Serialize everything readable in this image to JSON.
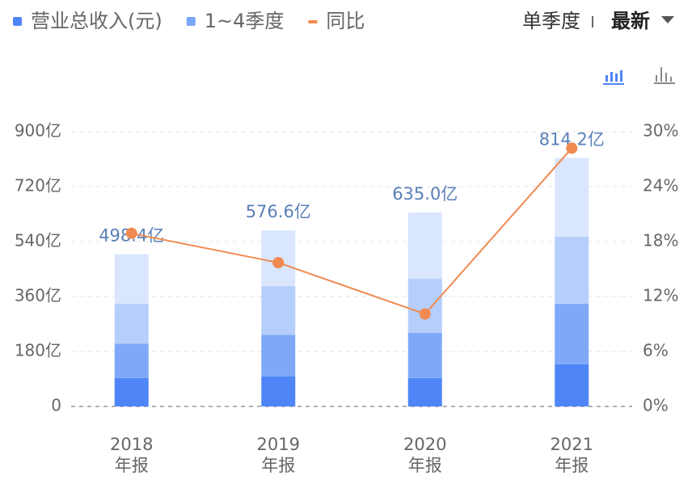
{
  "chart_data": {
    "type": "bar",
    "legend": [
      "营业总收入(元)",
      "1~4季度"
    ],
    "legend_colors": [
      "#4f86f7",
      "#7aa6f8"
    ],
    "controls": {
      "period": "单季度",
      "sort": "最新"
    },
    "categories": [
      [
        "2018",
        "年报"
      ],
      [
        "2019",
        "年报"
      ],
      [
        "2020",
        "年报"
      ],
      [
        "2021",
        "年报"
      ]
    ],
    "series": [
      {
        "color": "#4f86f7",
        "values": [
          93,
          98,
          93,
          138
        ]
      },
      {
        "color": "#7ea9f9",
        "values": [
          113,
          137,
          148,
          198
        ]
      },
      {
        "color": "#b5cefb",
        "values": [
          130,
          159,
          177,
          220
        ]
      },
      {
        "color": "#dae6fd",
        "values": [
          162.4,
          182.6,
          217,
          258.2
        ]
      },
      {
        "name": "同比",
        "type": "line",
        "axis": "y2",
        "color": "#f08a50",
        "values": [
          18.9,
          15.7,
          10.1,
          28.2
        ]
      }
    ],
    "totals": [
      498.4,
      576.6,
      635.0,
      814.2
    ],
    "total_labels": [
      "498.4亿",
      "576.6亿",
      "635.0亿",
      "814.2亿"
    ],
    "ylim": [
      0,
      900
    ],
    "yticks": [
      0,
      {
        "value": 180,
        "label": "180亿"
      },
      {
        "value": 360,
        "label": "360亿"
      },
      {
        "value": 540,
        "label": "540亿"
      },
      {
        "value": 720,
        "label": "720亿"
      },
      {
        "value": 900,
        "label": "900亿"
      }
    ],
    "y2lim": [
      0,
      30
    ],
    "y2ticks": [
      {
        "value": 0,
        "label": "0%"
      },
      {
        "value": 6,
        "label": "6%"
      },
      {
        "value": 12,
        "label": "12%"
      },
      {
        "value": 18,
        "label": "18%"
      },
      {
        "value": 24,
        "label": "24%"
      },
      {
        "value": 30,
        "label": "30%"
      }
    ],
    "grid": true
  }
}
